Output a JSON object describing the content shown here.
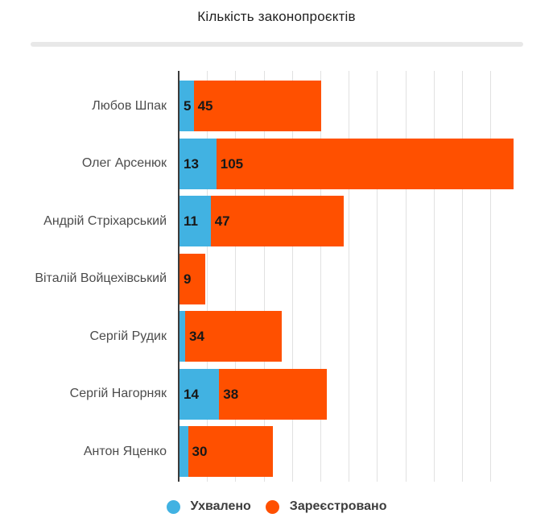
{
  "title": "Кількість законопроєктів",
  "chart_data": {
    "type": "bar",
    "orientation": "horizontal",
    "stacked": true,
    "title": "Кількість законопроєктів",
    "categories": [
      "Любов Шпак",
      "Олег Арсенюк",
      "Андрій Стріхарський",
      "Віталій Войцехівський",
      "Сергій Рудик",
      "Сергій Нагорняк",
      "Антон Яценко"
    ],
    "series": [
      {
        "name": "Ухвалено",
        "color": "#41b2e2",
        "values": [
          5,
          13,
          11,
          0,
          2,
          14,
          3
        ],
        "value_labels": [
          "5",
          "13",
          "11",
          "",
          "",
          "14",
          ""
        ]
      },
      {
        "name": "Зареєстровано",
        "color": "#ff5000",
        "values": [
          45,
          105,
          47,
          9,
          34,
          38,
          30
        ],
        "value_labels": [
          "45",
          "105",
          "47",
          "9",
          "34",
          "38",
          "30"
        ]
      }
    ],
    "x_axis": {
      "min": 0,
      "gridline_step": 10,
      "last_gridline_value": 110,
      "tick_labels_visible": false,
      "gridlines_visible": true
    },
    "legend_position": "bottom",
    "axis_color": "#3b3b3b",
    "gridline_color": "#e1e1e1"
  }
}
